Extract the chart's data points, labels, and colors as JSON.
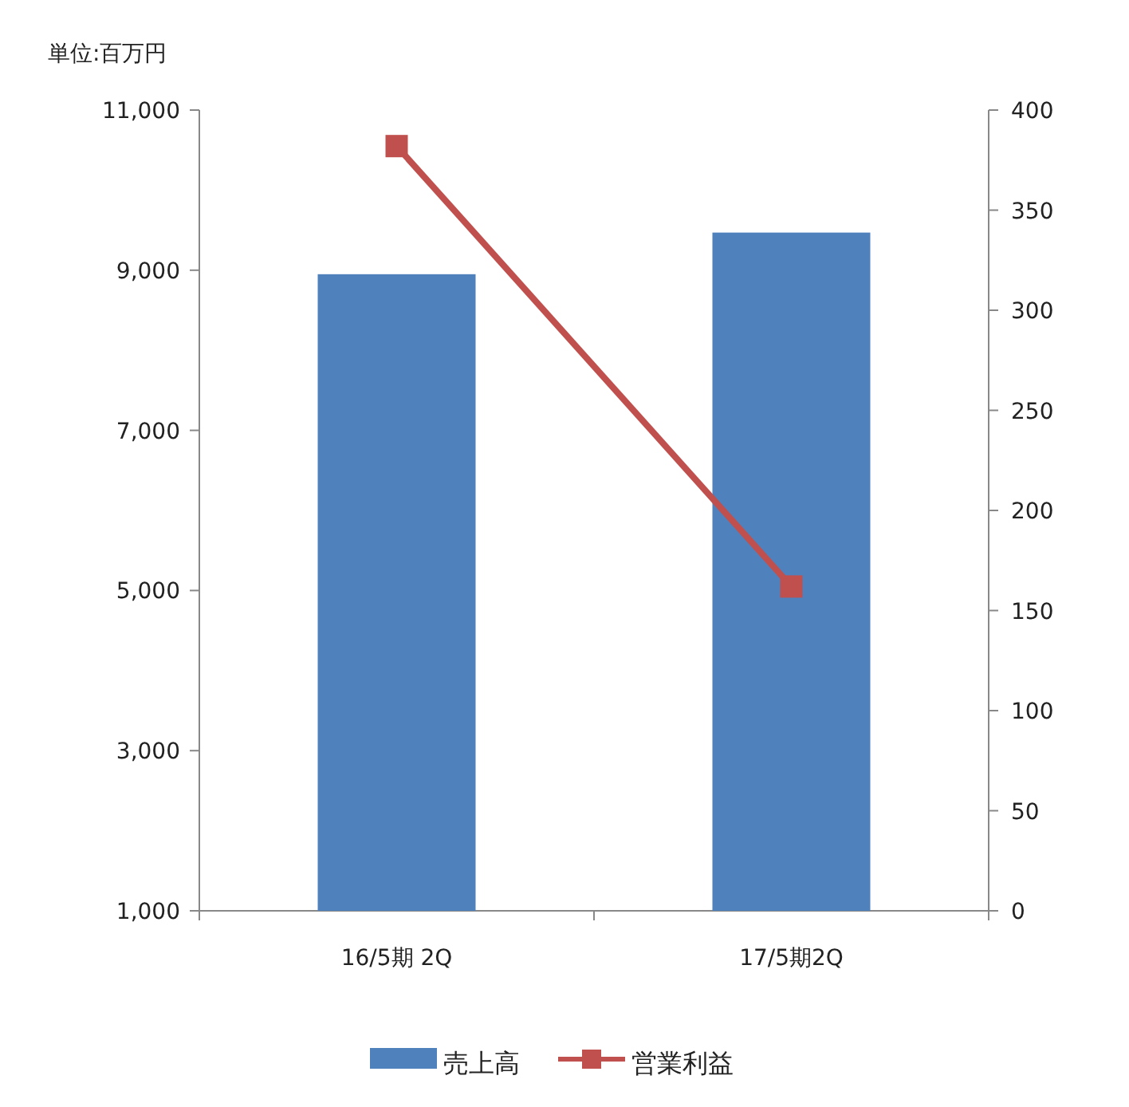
{
  "chart_data": {
    "type": "bar",
    "ylabel": "単位:百万円",
    "categories": [
      "16/5期 2Q",
      "17/5期2Q"
    ],
    "series": [
      {
        "name": "売上高",
        "color": "#4f81bd",
        "values": [
          8950,
          9470
        ]
      },
      {
        "name": "営業利益",
        "type": "line",
        "axis": "y2",
        "marker": "square",
        "color": "#c0504d",
        "values": [
          382,
          162
        ]
      }
    ],
    "ylim": [
      1000,
      11000
    ],
    "yticks": [
      {
        "value": 1000,
        "label": "1,000"
      },
      {
        "value": 3000,
        "label": "3,000"
      },
      {
        "value": 5000,
        "label": "5,000"
      },
      {
        "value": 7000,
        "label": "7,000"
      },
      {
        "value": 9000,
        "label": "9,000"
      },
      {
        "value": 11000,
        "label": "11,000"
      }
    ],
    "y2lim": [
      0,
      400
    ],
    "y2ticks": [
      0,
      50,
      100,
      150,
      200,
      250,
      300,
      350,
      400
    ],
    "legend": "bottom"
  }
}
